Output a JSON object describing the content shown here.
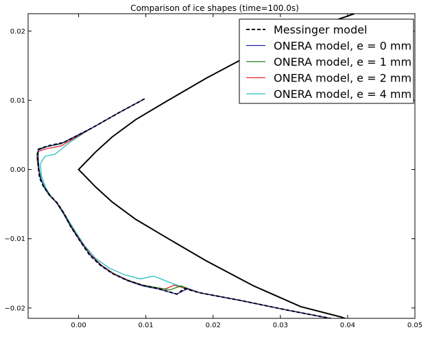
{
  "chart_data": {
    "type": "line",
    "title": "Comparison of ice shapes (time=100.0s)",
    "xlabel": "",
    "ylabel": "",
    "xlim": [
      -0.0075,
      0.05
    ],
    "ylim": [
      -0.0215,
      0.0225
    ],
    "xticks": [
      "0.00",
      "0.01",
      "0.02",
      "0.03",
      "0.04",
      "0.05"
    ],
    "xtick_values": [
      0.0,
      0.01,
      0.02,
      0.03,
      0.04,
      0.05
    ],
    "yticks": [
      "0.02",
      "0.01",
      "0.00",
      "−0.01",
      "−0.02"
    ],
    "ytick_values": [
      0.02,
      0.01,
      0.0,
      -0.01,
      -0.02
    ],
    "grid": false,
    "legend_position": "top-right",
    "clean_airfoil": {
      "color": "#000000",
      "points": [
        [
          0.041,
          0.0225
        ],
        [
          0.033,
          0.0198
        ],
        [
          0.026,
          0.0168
        ],
        [
          0.019,
          0.0132
        ],
        [
          0.013,
          0.0098
        ],
        [
          0.0085,
          0.0072
        ],
        [
          0.005,
          0.0047
        ],
        [
          0.0025,
          0.0025
        ],
        [
          0.0008,
          0.0008
        ],
        [
          0.0,
          0.0
        ],
        [
          0.0008,
          -0.0008
        ],
        [
          0.0025,
          -0.0025
        ],
        [
          0.005,
          -0.0047
        ],
        [
          0.0085,
          -0.0072
        ],
        [
          0.013,
          -0.0098
        ],
        [
          0.019,
          -0.0132
        ],
        [
          0.026,
          -0.0168
        ],
        [
          0.033,
          -0.0198
        ],
        [
          0.039,
          -0.0213
        ],
        [
          0.0425,
          -0.0225
        ]
      ]
    },
    "series": [
      {
        "name": "Messinger model",
        "color": "#000000",
        "dash": true,
        "points": [
          [
            0.0098,
            0.0102
          ],
          [
            0.006,
            0.0082
          ],
          [
            0.002,
            0.006
          ],
          [
            -0.0022,
            0.0039
          ],
          [
            -0.0046,
            0.0034
          ],
          [
            -0.006,
            0.0029
          ],
          [
            -0.0061,
            0.002
          ],
          [
            -0.006,
            0.0005
          ],
          [
            -0.0058,
            -0.0012
          ],
          [
            -0.0052,
            -0.0025
          ],
          [
            -0.0043,
            -0.0037
          ],
          [
            -0.0032,
            -0.0048
          ],
          [
            -0.0022,
            -0.0063
          ],
          [
            -0.0012,
            -0.0082
          ],
          [
            0.0002,
            -0.0103
          ],
          [
            0.0016,
            -0.0123
          ],
          [
            0.0032,
            -0.0138
          ],
          [
            0.005,
            -0.015
          ],
          [
            0.0072,
            -0.016
          ],
          [
            0.0094,
            -0.0167
          ],
          [
            0.0118,
            -0.0172
          ],
          [
            0.0146,
            -0.018
          ],
          [
            0.0158,
            -0.0172
          ],
          [
            0.018,
            -0.0178
          ],
          [
            0.024,
            -0.0189
          ],
          [
            0.031,
            -0.0203
          ],
          [
            0.039,
            -0.0218
          ],
          [
            0.041,
            -0.0225
          ]
        ]
      },
      {
        "name": "ONERA model, e = 0 mm",
        "color": "#1f1fbf",
        "dash": false,
        "points": [
          [
            0.0098,
            0.0102
          ],
          [
            0.006,
            0.0082
          ],
          [
            0.002,
            0.006
          ],
          [
            -0.0025,
            0.0038
          ],
          [
            -0.0047,
            0.0033
          ],
          [
            -0.006,
            0.0028
          ],
          [
            -0.006,
            0.0018
          ],
          [
            -0.0059,
            0.0003
          ],
          [
            -0.0057,
            -0.0012
          ],
          [
            -0.0051,
            -0.0025
          ],
          [
            -0.0043,
            -0.0037
          ],
          [
            -0.0032,
            -0.0049
          ],
          [
            -0.0022,
            -0.0064
          ],
          [
            -0.0011,
            -0.0083
          ],
          [
            0.0003,
            -0.0104
          ],
          [
            0.0018,
            -0.0124
          ],
          [
            0.0034,
            -0.0139
          ],
          [
            0.0052,
            -0.0151
          ],
          [
            0.0074,
            -0.0161
          ],
          [
            0.0095,
            -0.0168
          ],
          [
            0.012,
            -0.0173
          ],
          [
            0.0146,
            -0.018
          ],
          [
            0.0162,
            -0.0172
          ],
          [
            0.018,
            -0.0178
          ],
          [
            0.024,
            -0.0189
          ],
          [
            0.031,
            -0.0203
          ],
          [
            0.039,
            -0.0218
          ],
          [
            0.041,
            -0.0225
          ]
        ]
      },
      {
        "name": "ONERA model, e = 1 mm",
        "color": "#1a7f1a",
        "dash": false,
        "points": [
          [
            0.0098,
            0.0102
          ],
          [
            0.006,
            0.0082
          ],
          [
            0.002,
            0.006
          ],
          [
            -0.0026,
            0.0037
          ],
          [
            -0.0048,
            0.0033
          ],
          [
            -0.0059,
            0.003
          ],
          [
            -0.0062,
            0.0022
          ],
          [
            -0.006,
            0.0006
          ],
          [
            -0.0056,
            -0.0012
          ],
          [
            -0.0052,
            -0.0025
          ],
          [
            -0.0044,
            -0.0037
          ],
          [
            -0.0033,
            -0.0048
          ],
          [
            -0.0023,
            -0.0063
          ],
          [
            -0.0012,
            -0.0082
          ],
          [
            0.0002,
            -0.0103
          ],
          [
            0.0017,
            -0.0123
          ],
          [
            0.0033,
            -0.0138
          ],
          [
            0.0051,
            -0.015
          ],
          [
            0.0073,
            -0.016
          ],
          [
            0.0095,
            -0.0167
          ],
          [
            0.0119,
            -0.0171
          ],
          [
            0.0136,
            -0.0174
          ],
          [
            0.0152,
            -0.0168
          ],
          [
            0.018,
            -0.0178
          ],
          [
            0.024,
            -0.0189
          ],
          [
            0.031,
            -0.0203
          ],
          [
            0.039,
            -0.0218
          ],
          [
            0.041,
            -0.0225
          ]
        ]
      },
      {
        "name": "ONERA model, e = 2 mm",
        "color": "#e82a2a",
        "dash": false,
        "points": [
          [
            0.0098,
            0.0102
          ],
          [
            0.006,
            0.0082
          ],
          [
            0.002,
            0.006
          ],
          [
            -0.0026,
            0.0034
          ],
          [
            -0.0048,
            0.003
          ],
          [
            -0.006,
            0.0026
          ],
          [
            -0.0062,
            0.0016
          ],
          [
            -0.006,
            0.0003
          ],
          [
            -0.0057,
            -0.0012
          ],
          [
            -0.0051,
            -0.0025
          ],
          [
            -0.0043,
            -0.0037
          ],
          [
            -0.0032,
            -0.0048
          ],
          [
            -0.0022,
            -0.0063
          ],
          [
            -0.0011,
            -0.0082
          ],
          [
            0.0003,
            -0.0103
          ],
          [
            0.0018,
            -0.0123
          ],
          [
            0.0034,
            -0.0138
          ],
          [
            0.0052,
            -0.015
          ],
          [
            0.0074,
            -0.016
          ],
          [
            0.0096,
            -0.0167
          ],
          [
            0.0118,
            -0.0171
          ],
          [
            0.0128,
            -0.0173
          ],
          [
            0.0142,
            -0.0167
          ],
          [
            0.018,
            -0.0178
          ],
          [
            0.024,
            -0.0189
          ],
          [
            0.031,
            -0.0203
          ],
          [
            0.039,
            -0.0218
          ],
          [
            0.041,
            -0.0225
          ]
        ]
      },
      {
        "name": "ONERA model, e = 4 mm",
        "color": "#23bfbf",
        "dash": false,
        "points": [
          [
            0.0098,
            0.0102
          ],
          [
            0.006,
            0.0082
          ],
          [
            0.002,
            0.006
          ],
          [
            -0.0012,
            0.004
          ],
          [
            -0.0035,
            0.0022
          ],
          [
            -0.005,
            0.0019
          ],
          [
            -0.0057,
            0.0008
          ],
          [
            -0.0055,
            -0.001
          ],
          [
            -0.0048,
            -0.0028
          ],
          [
            -0.004,
            -0.004
          ],
          [
            -0.0028,
            -0.0053
          ],
          [
            -0.0017,
            -0.007
          ],
          [
            -0.0005,
            -0.0089
          ],
          [
            0.0009,
            -0.011
          ],
          [
            0.0025,
            -0.0128
          ],
          [
            0.0045,
            -0.0142
          ],
          [
            0.0068,
            -0.0152
          ],
          [
            0.0092,
            -0.0158
          ],
          [
            0.0112,
            -0.0154
          ],
          [
            0.0135,
            -0.0163
          ],
          [
            0.0158,
            -0.0171
          ],
          [
            0.018,
            -0.0178
          ],
          [
            0.024,
            -0.0189
          ],
          [
            0.031,
            -0.0203
          ],
          [
            0.039,
            -0.0218
          ],
          [
            0.041,
            -0.0225
          ]
        ]
      }
    ]
  }
}
